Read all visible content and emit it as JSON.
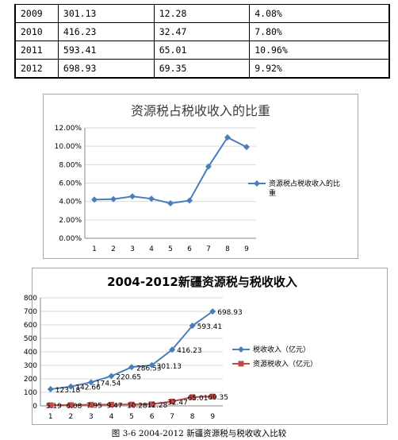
{
  "table": {
    "rows": [
      [
        "2009",
        "301.13",
        "12.28",
        "4.08%"
      ],
      [
        "2010",
        "416.23",
        "32.47",
        "7.80%"
      ],
      [
        "2011",
        "593.41",
        "65.01",
        "10.96%"
      ],
      [
        "2012",
        "698.93",
        "69.35",
        "9.92%"
      ]
    ]
  },
  "chart_data": [
    {
      "type": "line",
      "title": "资源税占税收收入的比重",
      "categories": [
        "1",
        "2",
        "3",
        "4",
        "5",
        "6",
        "7",
        "8",
        "9"
      ],
      "ylim": [
        0,
        12
      ],
      "yticks": [
        "0.00%",
        "2.00%",
        "4.00%",
        "6.00%",
        "8.00%",
        "10.00%",
        "12.00%"
      ],
      "grid": true,
      "legend": "right",
      "series": [
        {
          "name": "资源税占税收收入的比重",
          "color": "#4a7ebb",
          "marker": "diamond",
          "values": [
            4.2,
            4.25,
            4.55,
            4.3,
            3.8,
            4.1,
            7.8,
            10.96,
            9.92
          ]
        }
      ]
    },
    {
      "type": "line",
      "title": "2004-2012新疆资源税与税收收入",
      "categories": [
        "1",
        "2",
        "3",
        "4",
        "5",
        "6",
        "7",
        "8",
        "9"
      ],
      "ylim": [
        0,
        800
      ],
      "yticks": [
        "0",
        "100",
        "200",
        "300",
        "400",
        "500",
        "600",
        "700",
        "800"
      ],
      "grid": true,
      "legend": "right",
      "series": [
        {
          "name": "税收收入（亿元）",
          "color": "#4a7ebb",
          "marker": "diamond",
          "values": [
            123.18,
            142.66,
            174.54,
            220.65,
            286.53,
            301.13,
            416.23,
            593.41,
            698.93
          ],
          "labels": [
            "123.18",
            "142.66",
            "174.54",
            "220.65",
            "286.53",
            "301.13",
            "416.23",
            "593.41",
            "698.93"
          ]
        },
        {
          "name": "资源税收入（亿元）",
          "color": "#be4b48",
          "marker": "square",
          "values": [
            5.19,
            6.08,
            7.95,
            9.47,
            10.28,
            12.28,
            32.47,
            65.01,
            69.35
          ],
          "labels": [
            "5.19",
            "6.08",
            "7.95",
            "9.47",
            "10.28",
            "12.28",
            "32.47",
            "65.01",
            "69.35"
          ]
        }
      ]
    }
  ],
  "caption": "图 3-6   2004-2012 新疆资源税与税收收入比较"
}
